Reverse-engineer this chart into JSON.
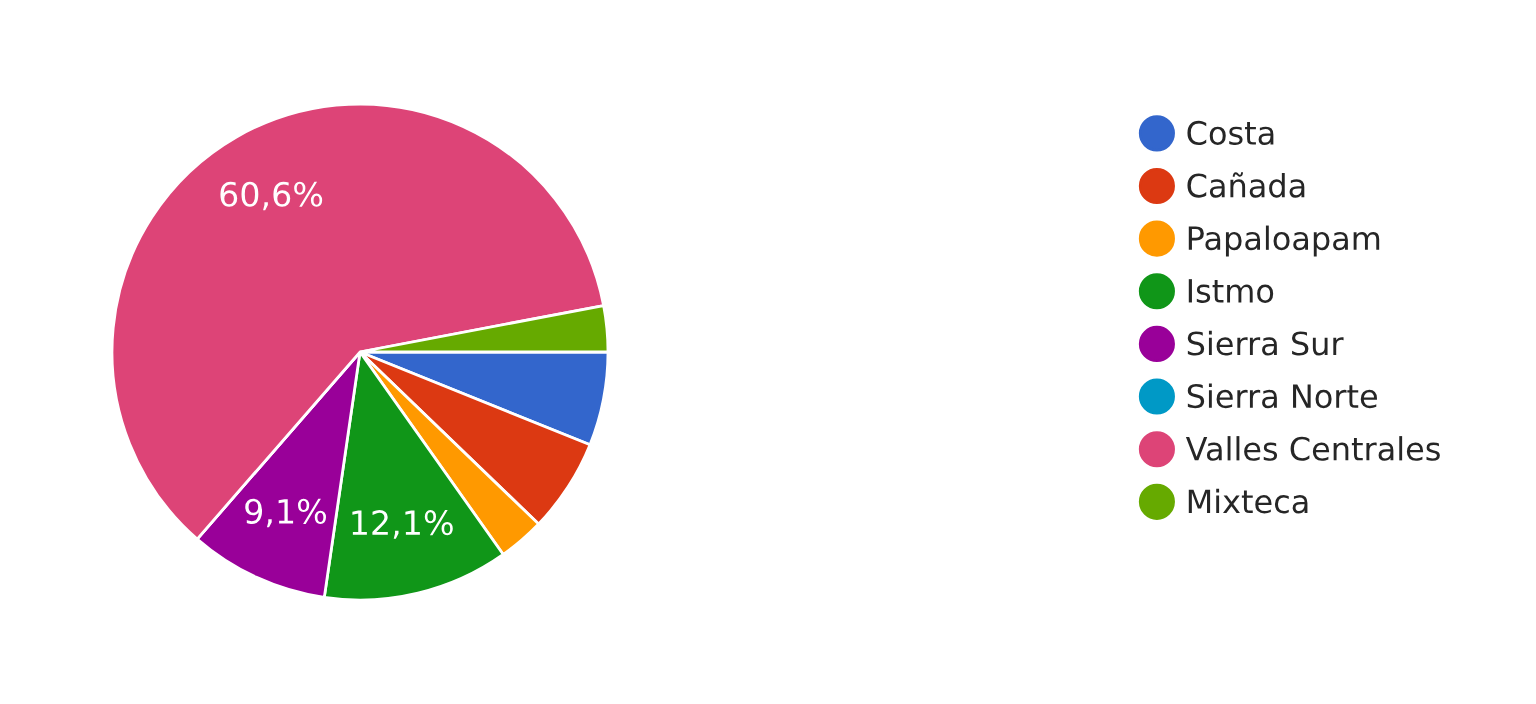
{
  "chart_data": {
    "type": "pie",
    "categories": [
      "Costa",
      "Cañada",
      "Papaloapam",
      "Istmo",
      "Sierra Sur",
      "Sierra Norte",
      "Valles Centrales",
      "Mixteca"
    ],
    "values": [
      6.1,
      6.1,
      3.0,
      12.1,
      9.1,
      0,
      60.6,
      3.0
    ],
    "value_labels": [
      null,
      null,
      null,
      "12,1%",
      "9,1%",
      null,
      "60,6%",
      null
    ],
    "colors": [
      "#3366cc",
      "#dc3912",
      "#ff9900",
      "#109618",
      "#990099",
      "#0099c6",
      "#dd4477",
      "#66aa00"
    ],
    "legend": "right"
  }
}
